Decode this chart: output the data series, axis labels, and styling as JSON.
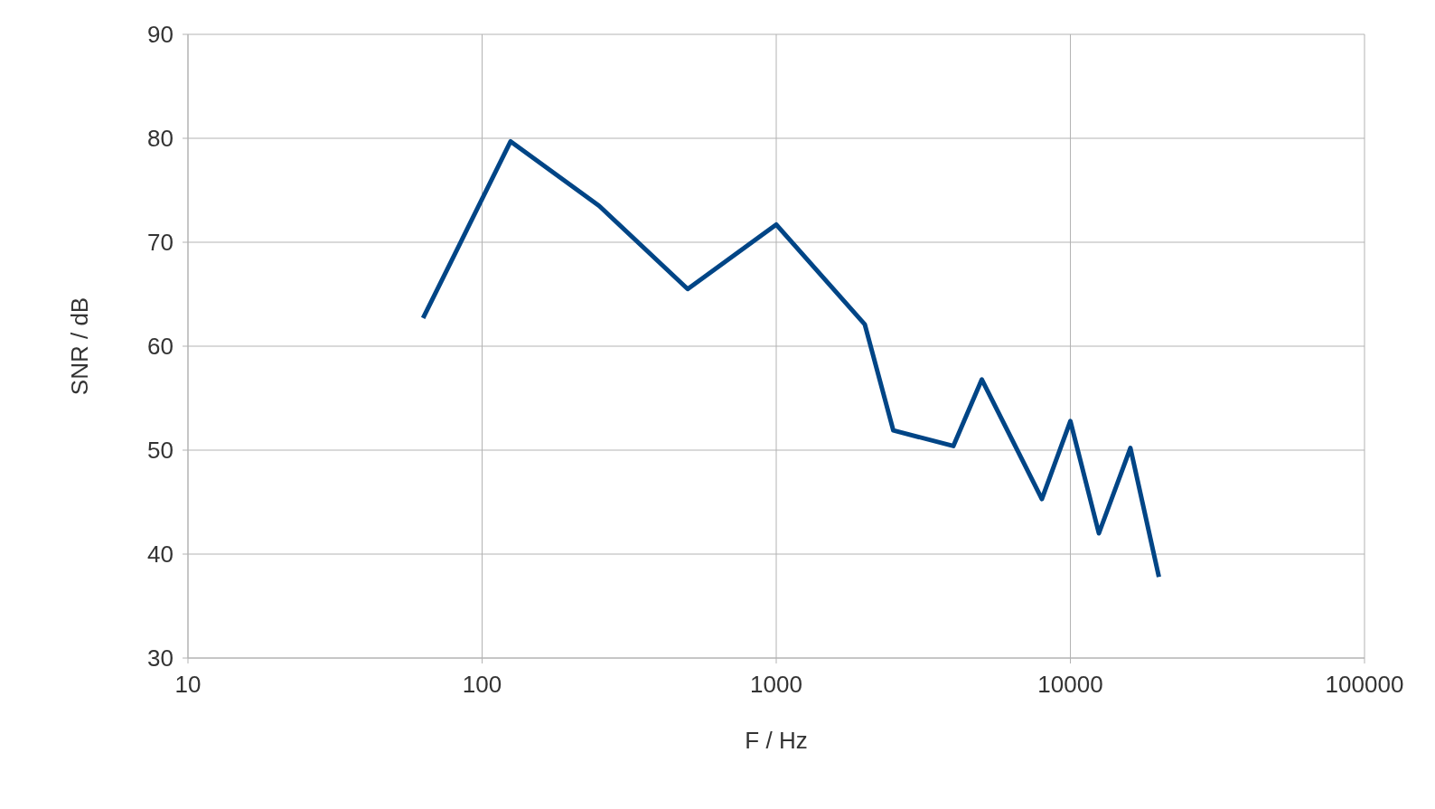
{
  "chart_data": {
    "type": "line",
    "xlabel": "F / Hz",
    "ylabel": "SNR / dB",
    "log": "x",
    "grid": true,
    "legend": false,
    "marker": "none",
    "line_style": "solid",
    "x": [
      63,
      125,
      250,
      500,
      1000,
      2000,
      2500,
      4000,
      5000,
      8000,
      10000,
      12500,
      16000,
      20000
    ],
    "series": [
      {
        "color": "#004586",
        "values": [
          62.7,
          79.7,
          73.5,
          65.5,
          71.7,
          62.1,
          51.9,
          50.4,
          56.8,
          45.3,
          52.8,
          42.0,
          50.2,
          37.8
        ]
      }
    ],
    "xlim": [
      10,
      100000
    ],
    "xticks": [
      10,
      100,
      1000,
      10000,
      100000
    ],
    "ylim": [
      30,
      90
    ],
    "yticks": [
      30,
      40,
      50,
      60,
      70,
      80,
      90
    ]
  }
}
